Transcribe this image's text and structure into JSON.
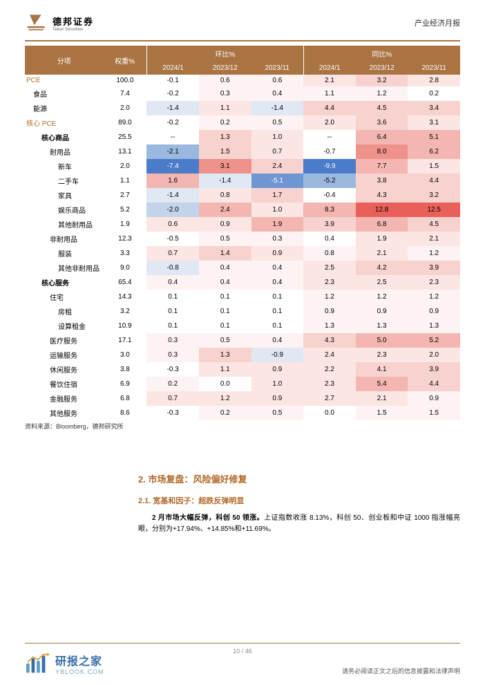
{
  "header": {
    "company_cn": "德邦证券",
    "company_en": "Tebon Securities",
    "report_type": "产业经济月报"
  },
  "table": {
    "type": "table",
    "header_bg": "#a97442",
    "header_fg": "#ffffff",
    "group1_label": "环比%",
    "group2_label": "同比%",
    "col_labels": [
      "分项",
      "权重%",
      "2024/1",
      "2023/12",
      "2023/11",
      "2024/1",
      "2023/12",
      "2023/11"
    ],
    "col_widths": [
      "18%",
      "10%",
      "12%",
      "12%",
      "12%",
      "12%",
      "12%",
      "12%"
    ],
    "heat_bg": {
      "neutral": "#ffffff",
      "red0": "#fdf3f2",
      "red1": "#fbe6e4",
      "red2": "#f8d2cf",
      "red3": "#f3b6b1",
      "red4": "#ee928b",
      "red5": "#e95f59",
      "blue1": "#e0e8f3",
      "blue2": "#c3d3ea",
      "blue3": "#9bb8df",
      "blue4": "#6d96d3",
      "blue5": "#4b7cc9"
    },
    "rows": [
      {
        "label": "PCE",
        "level": 1,
        "weight": "100.0",
        "cells": [
          {
            "v": "-0.1",
            "bg": "neutral"
          },
          {
            "v": "0.6",
            "bg": "red0"
          },
          {
            "v": "0.6",
            "bg": "red0"
          },
          {
            "v": "2.1",
            "bg": "red1"
          },
          {
            "v": "3.2",
            "bg": "red2"
          },
          {
            "v": "2.8",
            "bg": "red1"
          }
        ]
      },
      {
        "label": "食品",
        "level": 2,
        "weight": "7.4",
        "cells": [
          {
            "v": "-0.2",
            "bg": "neutral"
          },
          {
            "v": "0.3",
            "bg": "red0"
          },
          {
            "v": "0.4",
            "bg": "red0"
          },
          {
            "v": "1.1",
            "bg": "red0"
          },
          {
            "v": "1.2",
            "bg": "red0"
          },
          {
            "v": "0.2",
            "bg": "neutral"
          }
        ]
      },
      {
        "label": "能源",
        "level": 2,
        "weight": "2.0",
        "cells": [
          {
            "v": "-1.4",
            "bg": "blue1"
          },
          {
            "v": "1.1",
            "bg": "red1"
          },
          {
            "v": "-1.4",
            "bg": "blue1"
          },
          {
            "v": "4.4",
            "bg": "red2"
          },
          {
            "v": "4.5",
            "bg": "red2"
          },
          {
            "v": "3.4",
            "bg": "red2"
          }
        ]
      },
      {
        "label": "核心 PCE",
        "level": 1,
        "weight": "89.0",
        "cells": [
          {
            "v": "-0.2",
            "bg": "neutral"
          },
          {
            "v": "0.2",
            "bg": "red0"
          },
          {
            "v": "0.5",
            "bg": "red0"
          },
          {
            "v": "2.0",
            "bg": "red1"
          },
          {
            "v": "3.6",
            "bg": "red2"
          },
          {
            "v": "3.1",
            "bg": "red1"
          }
        ]
      },
      {
        "label": "核心商品",
        "level": 3,
        "weight": "25.5",
        "cells": [
          {
            "v": "--",
            "bg": "neutral"
          },
          {
            "v": "1.3",
            "bg": "red2"
          },
          {
            "v": "1.0",
            "bg": "red1"
          },
          {
            "v": "--",
            "bg": "neutral"
          },
          {
            "v": "6.4",
            "bg": "red3"
          },
          {
            "v": "5.1",
            "bg": "red3"
          }
        ]
      },
      {
        "label": "耐用品",
        "level": 4,
        "weight": "13.1",
        "cells": [
          {
            "v": "-2.1",
            "bg": "blue3"
          },
          {
            "v": "1.5",
            "bg": "red2"
          },
          {
            "v": "0.7",
            "bg": "red1"
          },
          {
            "v": "-0.7",
            "bg": "neutral"
          },
          {
            "v": "8.0",
            "bg": "red4"
          },
          {
            "v": "6.2",
            "bg": "red3"
          }
        ]
      },
      {
        "label": "新车",
        "level": 5,
        "weight": "2.0",
        "cells": [
          {
            "v": "-7.4",
            "bg": "blue5",
            "fg": "#fff"
          },
          {
            "v": "3.1",
            "bg": "red4"
          },
          {
            "v": "2.4",
            "bg": "red2"
          },
          {
            "v": "-9.9",
            "bg": "blue5",
            "fg": "#fff"
          },
          {
            "v": "7.7",
            "bg": "red3"
          },
          {
            "v": "1.5",
            "bg": "red1"
          }
        ]
      },
      {
        "label": "二手车",
        "level": 5,
        "weight": "1.1",
        "cells": [
          {
            "v": "1.6",
            "bg": "red3"
          },
          {
            "v": "-1.4",
            "bg": "blue1"
          },
          {
            "v": "-5.1",
            "bg": "blue4",
            "fg": "#fff"
          },
          {
            "v": "-5.2",
            "bg": "blue3"
          },
          {
            "v": "3.8",
            "bg": "red2"
          },
          {
            "v": "4.4",
            "bg": "red2"
          }
        ]
      },
      {
        "label": "家具",
        "level": 5,
        "weight": "2.7",
        "cells": [
          {
            "v": "-1.4",
            "bg": "blue1"
          },
          {
            "v": "0.8",
            "bg": "red1"
          },
          {
            "v": "1.7",
            "bg": "red2"
          },
          {
            "v": "-0.4",
            "bg": "neutral"
          },
          {
            "v": "4.3",
            "bg": "red2"
          },
          {
            "v": "3.2",
            "bg": "red2"
          }
        ]
      },
      {
        "label": "娱乐商品",
        "level": 5,
        "weight": "5.2",
        "cells": [
          {
            "v": "-2.0",
            "bg": "blue2"
          },
          {
            "v": "2.4",
            "bg": "red3"
          },
          {
            "v": "1.0",
            "bg": "red1"
          },
          {
            "v": "8.3",
            "bg": "red3"
          },
          {
            "v": "12.8",
            "bg": "red5"
          },
          {
            "v": "12.5",
            "bg": "red5"
          }
        ]
      },
      {
        "label": "其他耐用品",
        "level": 5,
        "weight": "1.9",
        "cells": [
          {
            "v": "0.6",
            "bg": "red1"
          },
          {
            "v": "0.9",
            "bg": "red1"
          },
          {
            "v": "1.9",
            "bg": "red3"
          },
          {
            "v": "3.9",
            "bg": "red2"
          },
          {
            "v": "6.8",
            "bg": "red3"
          },
          {
            "v": "4.5",
            "bg": "red2"
          }
        ]
      },
      {
        "label": "非耐用品",
        "level": 4,
        "weight": "12.3",
        "cells": [
          {
            "v": "-0.5",
            "bg": "neutral"
          },
          {
            "v": "0.5",
            "bg": "red0"
          },
          {
            "v": "0.3",
            "bg": "red0"
          },
          {
            "v": "0.4",
            "bg": "neutral"
          },
          {
            "v": "1.9",
            "bg": "red1"
          },
          {
            "v": "2.1",
            "bg": "red1"
          }
        ]
      },
      {
        "label": "服装",
        "level": 5,
        "weight": "3.3",
        "cells": [
          {
            "v": "0.7",
            "bg": "red1"
          },
          {
            "v": "1.4",
            "bg": "red2"
          },
          {
            "v": "0.9",
            "bg": "red1"
          },
          {
            "v": "0.8",
            "bg": "red0"
          },
          {
            "v": "2.1",
            "bg": "red1"
          },
          {
            "v": "1.2",
            "bg": "red0"
          }
        ]
      },
      {
        "label": "其他非耐用品",
        "level": 5,
        "weight": "9.0",
        "cells": [
          {
            "v": "-0.8",
            "bg": "blue1"
          },
          {
            "v": "0.4",
            "bg": "red0"
          },
          {
            "v": "0.4",
            "bg": "red0"
          },
          {
            "v": "2.5",
            "bg": "red1"
          },
          {
            "v": "4.2",
            "bg": "red2"
          },
          {
            "v": "3.9",
            "bg": "red2"
          }
        ]
      },
      {
        "label": "核心服务",
        "level": 3,
        "weight": "65.4",
        "cells": [
          {
            "v": "0.4",
            "bg": "red0"
          },
          {
            "v": "0.4",
            "bg": "red0"
          },
          {
            "v": "0.4",
            "bg": "red0"
          },
          {
            "v": "2.3",
            "bg": "red1"
          },
          {
            "v": "2.5",
            "bg": "red1"
          },
          {
            "v": "2.3",
            "bg": "red1"
          }
        ]
      },
      {
        "label": "住宅",
        "level": 4,
        "weight": "14.3",
        "cells": [
          {
            "v": "0.1",
            "bg": "neutral"
          },
          {
            "v": "0.1",
            "bg": "neutral"
          },
          {
            "v": "0.1",
            "bg": "neutral"
          },
          {
            "v": "1.2",
            "bg": "red0"
          },
          {
            "v": "1.2",
            "bg": "red0"
          },
          {
            "v": "1.2",
            "bg": "red0"
          }
        ]
      },
      {
        "label": "房租",
        "level": 5,
        "weight": "3.2",
        "cells": [
          {
            "v": "0.1",
            "bg": "neutral"
          },
          {
            "v": "0.1",
            "bg": "neutral"
          },
          {
            "v": "0.1",
            "bg": "neutral"
          },
          {
            "v": "0.9",
            "bg": "red0"
          },
          {
            "v": "0.9",
            "bg": "red0"
          },
          {
            "v": "0.9",
            "bg": "red0"
          }
        ]
      },
      {
        "label": "设算租金",
        "level": 5,
        "weight": "10.9",
        "cells": [
          {
            "v": "0.1",
            "bg": "neutral"
          },
          {
            "v": "0.1",
            "bg": "neutral"
          },
          {
            "v": "0.1",
            "bg": "neutral"
          },
          {
            "v": "1.3",
            "bg": "red0"
          },
          {
            "v": "1.3",
            "bg": "red0"
          },
          {
            "v": "1.3",
            "bg": "red0"
          }
        ]
      },
      {
        "label": "医疗服务",
        "level": 4,
        "weight": "17.1",
        "cells": [
          {
            "v": "0.3",
            "bg": "red0"
          },
          {
            "v": "0.5",
            "bg": "red0"
          },
          {
            "v": "0.4",
            "bg": "red0"
          },
          {
            "v": "4.3",
            "bg": "red2"
          },
          {
            "v": "5.0",
            "bg": "red3"
          },
          {
            "v": "5.2",
            "bg": "red3"
          }
        ]
      },
      {
        "label": "运输服务",
        "level": 4,
        "weight": "3.0",
        "cells": [
          {
            "v": "0.3",
            "bg": "red0"
          },
          {
            "v": "1.3",
            "bg": "red2"
          },
          {
            "v": "-0.9",
            "bg": "blue1"
          },
          {
            "v": "2.4",
            "bg": "red1"
          },
          {
            "v": "2.3",
            "bg": "red1"
          },
          {
            "v": "2.0",
            "bg": "red1"
          }
        ]
      },
      {
        "label": "休闲服务",
        "level": 4,
        "weight": "3.8",
        "cells": [
          {
            "v": "-0.3",
            "bg": "neutral"
          },
          {
            "v": "1.1",
            "bg": "red1"
          },
          {
            "v": "0.9",
            "bg": "red1"
          },
          {
            "v": "2.2",
            "bg": "red1"
          },
          {
            "v": "4.1",
            "bg": "red2"
          },
          {
            "v": "3.9",
            "bg": "red2"
          }
        ]
      },
      {
        "label": "餐饮住宿",
        "level": 4,
        "weight": "6.9",
        "cells": [
          {
            "v": "0.2",
            "bg": "red0"
          },
          {
            "v": "0.0",
            "bg": "neutral"
          },
          {
            "v": "1.0",
            "bg": "red1"
          },
          {
            "v": "2.3",
            "bg": "red1"
          },
          {
            "v": "5.4",
            "bg": "red3"
          },
          {
            "v": "4.4",
            "bg": "red2"
          }
        ]
      },
      {
        "label": "金融服务",
        "level": 4,
        "weight": "6.8",
        "cells": [
          {
            "v": "0.7",
            "bg": "red1"
          },
          {
            "v": "1.2",
            "bg": "red1"
          },
          {
            "v": "0.9",
            "bg": "red1"
          },
          {
            "v": "2.7",
            "bg": "red1"
          },
          {
            "v": "2.1",
            "bg": "red1"
          },
          {
            "v": "0.9",
            "bg": "red0"
          }
        ]
      },
      {
        "label": "其他服务",
        "level": 4,
        "weight": "8.6",
        "cells": [
          {
            "v": "-0.3",
            "bg": "neutral"
          },
          {
            "v": "0.2",
            "bg": "red0"
          },
          {
            "v": "0.5",
            "bg": "red0"
          },
          {
            "v": "0.0",
            "bg": "neutral"
          },
          {
            "v": "1.5",
            "bg": "red0"
          },
          {
            "v": "1.5",
            "bg": "red0"
          }
        ]
      }
    ]
  },
  "source_note": "资料来源：Bloomberg，德邦研究所",
  "section": {
    "num": "2.",
    "title": "市场复盘：风险偏好修复",
    "sub_num": "2.1.",
    "sub_title": "宽基和因子：超跌反弹明显",
    "body_bold": "2 月市场大幅反弹，科创 50 领涨。",
    "body_rest": "上证指数收涨 8.13%，科创 50、创业板和中证 1000 指涨幅亮眼，分别为+17.94%、+14.85%和+11.69%。"
  },
  "footer": {
    "page": "10 / 46",
    "disclaimer": "请务必阅读正文之后的信息披露和法律声明",
    "watermark_cn": "研报之家",
    "watermark_en": "YBLOOK.COM"
  }
}
